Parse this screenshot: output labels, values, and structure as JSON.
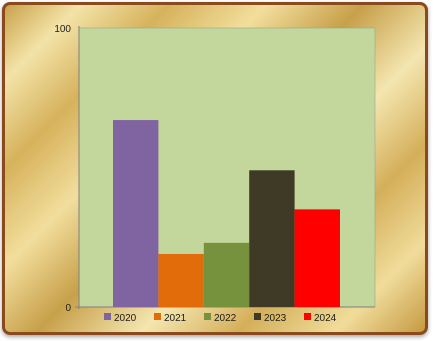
{
  "chart_data": {
    "type": "bar",
    "categories": [
      "2020",
      "2021",
      "2022",
      "2023",
      "2024"
    ],
    "values": [
      67,
      19,
      23,
      49,
      35
    ],
    "ylim": [
      0,
      100
    ],
    "y_ticks": [
      "0",
      "100"
    ],
    "title": "",
    "xlabel": "",
    "ylabel": "",
    "grid": false,
    "legend_position": "bottom",
    "colors": [
      "#8064a2",
      "#e36c0a",
      "#76923c",
      "#3f3a26",
      "#ff0000"
    ],
    "plot_background": "#c3d69b"
  },
  "legend": {
    "items": [
      {
        "label": "2020",
        "color": "#8064a2"
      },
      {
        "label": "2021",
        "color": "#e36c0a"
      },
      {
        "label": "2022",
        "color": "#76923c"
      },
      {
        "label": "2023",
        "color": "#3f3a26"
      },
      {
        "label": "2024",
        "color": "#ff0000"
      }
    ]
  },
  "axis": {
    "y_min_label": "0",
    "y_max_label": "100"
  }
}
